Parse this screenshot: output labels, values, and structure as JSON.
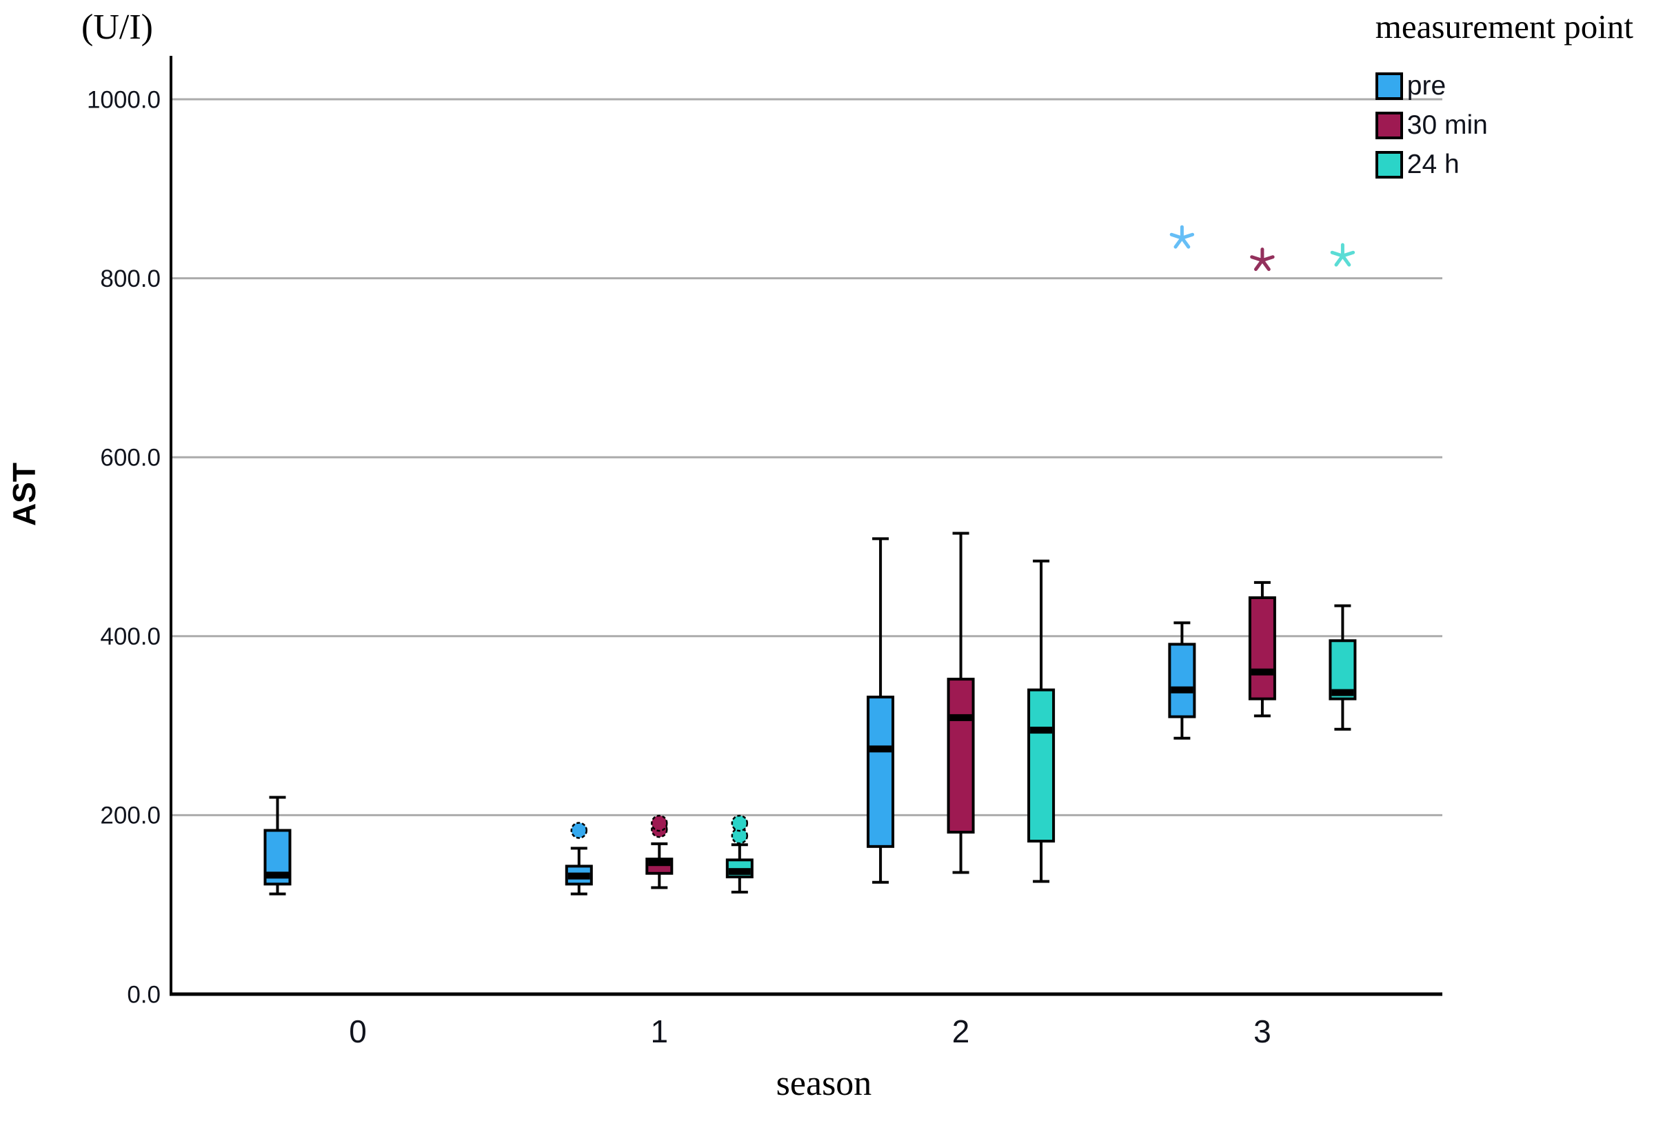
{
  "figure": {
    "y_unit_label": "(U/I)",
    "y_axis_title": "AST",
    "x_axis_title": "season"
  },
  "legend": {
    "title": "measurement point",
    "position": "top-right",
    "items": [
      {
        "label": "pre",
        "color": "#35A9EF",
        "star_color": "#66BEF6"
      },
      {
        "label": "30 min",
        "color": "#9E1A52",
        "star_color": "#93305C"
      },
      {
        "label": "24 h",
        "color": "#2BD4C8",
        "star_color": "#5ADCD5"
      }
    ]
  },
  "chart_data": {
    "type": "boxplot",
    "title": "",
    "xlabel": "season",
    "ylabel": "AST",
    "y_unit": "(U/I)",
    "categories": [
      "0",
      "1",
      "2",
      "3"
    ],
    "y_ticks": [
      0,
      200,
      400,
      600,
      800,
      1000
    ],
    "y_tick_format": "one_decimal",
    "ylim": [
      0,
      1048
    ],
    "grid": "horizontal",
    "legend_position": "top-right",
    "colors": {
      "gridline": "#ABABAB",
      "axis": "#000000",
      "tick_label": "#10131c",
      "box_stroke": "#000000",
      "median": "#000000"
    },
    "series": [
      {
        "name": "pre",
        "color": "#35A9EF",
        "star_color": "#66BEF6",
        "boxes": [
          {
            "category": "0",
            "whisker_low": 112,
            "q1": 123,
            "median": 133,
            "q3": 183,
            "whisker_high": 220,
            "outliers": [],
            "extremes": []
          },
          {
            "category": "1",
            "whisker_low": 112,
            "q1": 123,
            "median": 132,
            "q3": 143,
            "whisker_high": 163,
            "outliers": [
              183
            ],
            "extremes": []
          },
          {
            "category": "2",
            "whisker_low": 125,
            "q1": 165,
            "median": 274,
            "q3": 332,
            "whisker_high": 509,
            "outliers": [],
            "extremes": []
          },
          {
            "category": "3",
            "whisker_low": 286,
            "q1": 310,
            "median": 340,
            "q3": 391,
            "whisker_high": 415,
            "outliers": [],
            "extremes": [
              845
            ]
          }
        ]
      },
      {
        "name": "30 min",
        "color": "#9E1A52",
        "star_color": "#93305C",
        "boxes": [
          {
            "category": "1",
            "whisker_low": 119,
            "q1": 135,
            "median": 147,
            "q3": 151,
            "whisker_high": 168,
            "outliers": [
              184,
              191
            ],
            "extremes": []
          },
          {
            "category": "2",
            "whisker_low": 136,
            "q1": 181,
            "median": 309,
            "q3": 352,
            "whisker_high": 515,
            "outliers": [],
            "extremes": []
          },
          {
            "category": "3",
            "whisker_low": 311,
            "q1": 330,
            "median": 360,
            "q3": 443,
            "whisker_high": 460,
            "outliers": [],
            "extremes": [
              820
            ]
          }
        ]
      },
      {
        "name": "24 h",
        "color": "#2BD4C8",
        "star_color": "#5ADCD5",
        "boxes": [
          {
            "category": "1",
            "whisker_low": 114,
            "q1": 131,
            "median": 137,
            "q3": 150,
            "whisker_high": 167,
            "outliers": [
              177,
              191
            ],
            "extremes": []
          },
          {
            "category": "2",
            "whisker_low": 126,
            "q1": 171,
            "median": 295,
            "q3": 340,
            "whisker_high": 484,
            "outliers": [],
            "extremes": []
          },
          {
            "category": "3",
            "whisker_low": 296,
            "q1": 330,
            "median": 337,
            "q3": 395,
            "whisker_high": 434,
            "outliers": [],
            "extremes": [
              825
            ]
          }
        ]
      }
    ]
  }
}
